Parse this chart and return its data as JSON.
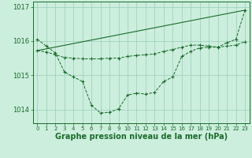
{
  "background_color": "#cceedd",
  "grid_color": "#99ccbb",
  "line_color": "#1a6b2a",
  "marker_color": "#1a6b2a",
  "xlabel": "Graphe pression niveau de la mer (hPa)",
  "xlabel_fontsize": 7,
  "ylabel_fontsize": 6,
  "xlim": [
    -0.5,
    23.5
  ],
  "ylim": [
    1013.6,
    1017.15
  ],
  "yticks": [
    1014,
    1015,
    1016,
    1017
  ],
  "xticks": [
    0,
    1,
    2,
    3,
    4,
    5,
    6,
    7,
    8,
    9,
    10,
    11,
    12,
    13,
    14,
    15,
    16,
    17,
    18,
    19,
    20,
    21,
    22,
    23
  ],
  "series1_x": [
    0,
    1,
    2,
    3,
    4,
    5,
    6,
    7,
    8,
    9,
    10,
    11,
    12,
    13,
    14,
    15,
    16,
    17,
    18,
    19,
    20,
    21,
    22,
    23
  ],
  "series1_y": [
    1016.05,
    1015.85,
    1015.65,
    1015.1,
    1014.95,
    1014.82,
    1014.12,
    1013.9,
    1013.92,
    1014.02,
    1014.42,
    1014.48,
    1014.45,
    1014.5,
    1014.82,
    1014.95,
    1015.55,
    1015.7,
    1015.8,
    1015.82,
    1015.82,
    1015.95,
    1016.05,
    1016.9
  ],
  "series2_x": [
    0,
    1,
    2,
    3,
    4,
    5,
    6,
    7,
    8,
    9,
    10,
    11,
    12,
    13,
    14,
    15,
    16,
    17,
    18,
    19,
    20,
    21,
    22,
    23
  ],
  "series2_y": [
    1015.72,
    1015.68,
    1015.6,
    1015.52,
    1015.5,
    1015.48,
    1015.48,
    1015.48,
    1015.5,
    1015.5,
    1015.55,
    1015.58,
    1015.6,
    1015.62,
    1015.7,
    1015.75,
    1015.82,
    1015.88,
    1015.88,
    1015.85,
    1015.82,
    1015.85,
    1015.88,
    1015.98
  ],
  "series3_x": [
    0,
    23
  ],
  "series3_y": [
    1015.72,
    1016.9
  ]
}
